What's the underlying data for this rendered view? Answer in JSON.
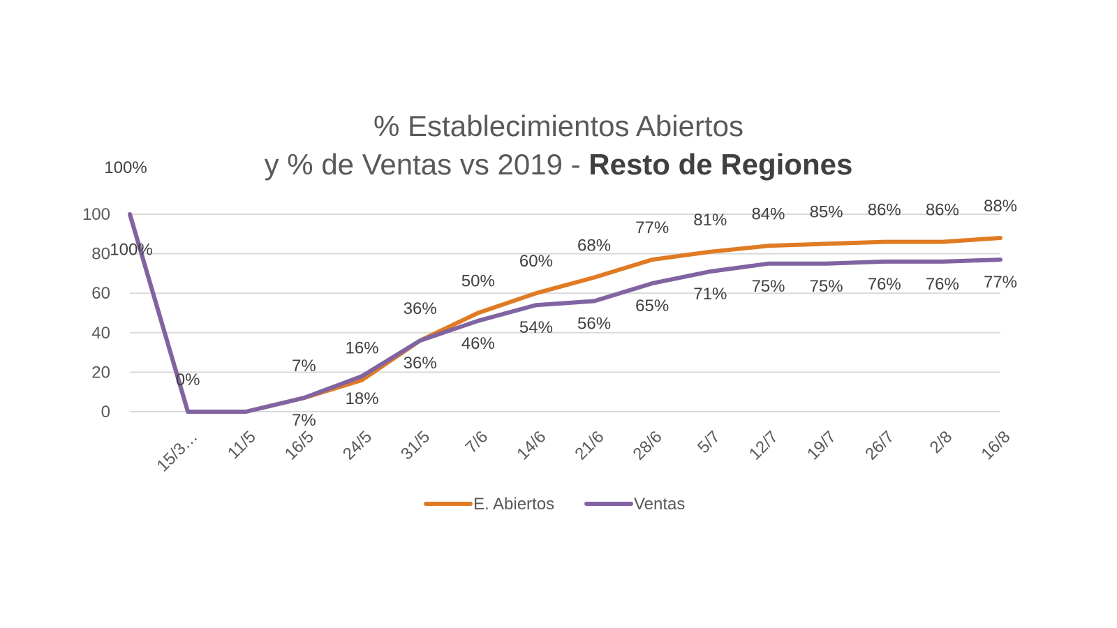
{
  "chart_data": {
    "type": "line",
    "title": {
      "line1": "% Establecimientos  Abiertos",
      "line2_prefix": "y % de Ventas vs 2019 - ",
      "line2_bold": "Resto de Regiones"
    },
    "categories": [
      "",
      "15/3…",
      "11/5",
      "16/5",
      "24/5",
      "31/5",
      "7/6",
      "14/6",
      "21/6",
      "28/6",
      "5/7",
      "12/7",
      "19/7",
      "26/7",
      "2/8",
      "16/8"
    ],
    "y_ticks": [
      "0",
      "20",
      "40",
      "60",
      "80",
      "100"
    ],
    "ylim": [
      0,
      100
    ],
    "grid": true,
    "legend_position": "bottom",
    "series": [
      {
        "name": "E. Abiertos",
        "color": "#E07B24",
        "values": [
          100,
          0,
          0,
          7,
          16,
          36,
          50,
          60,
          68,
          77,
          81,
          84,
          85,
          86,
          86,
          88
        ],
        "labels": [
          "100%",
          "0%",
          "",
          "7%",
          "16%",
          "36%",
          "50%",
          "60%",
          "68%",
          "77%",
          "81%",
          "84%",
          "85%",
          "86%",
          "86%",
          "88%"
        ]
      },
      {
        "name": "Ventas",
        "color": "#8064A2",
        "values": [
          100,
          0,
          0,
          7,
          18,
          36,
          46,
          54,
          56,
          65,
          71,
          75,
          75,
          76,
          76,
          77
        ],
        "labels": [
          "100%",
          "",
          "",
          "7%",
          "18%",
          "36%",
          "46%",
          "54%",
          "56%",
          "65%",
          "71%",
          "75%",
          "75%",
          "76%",
          "76%",
          "77%"
        ]
      }
    ]
  }
}
